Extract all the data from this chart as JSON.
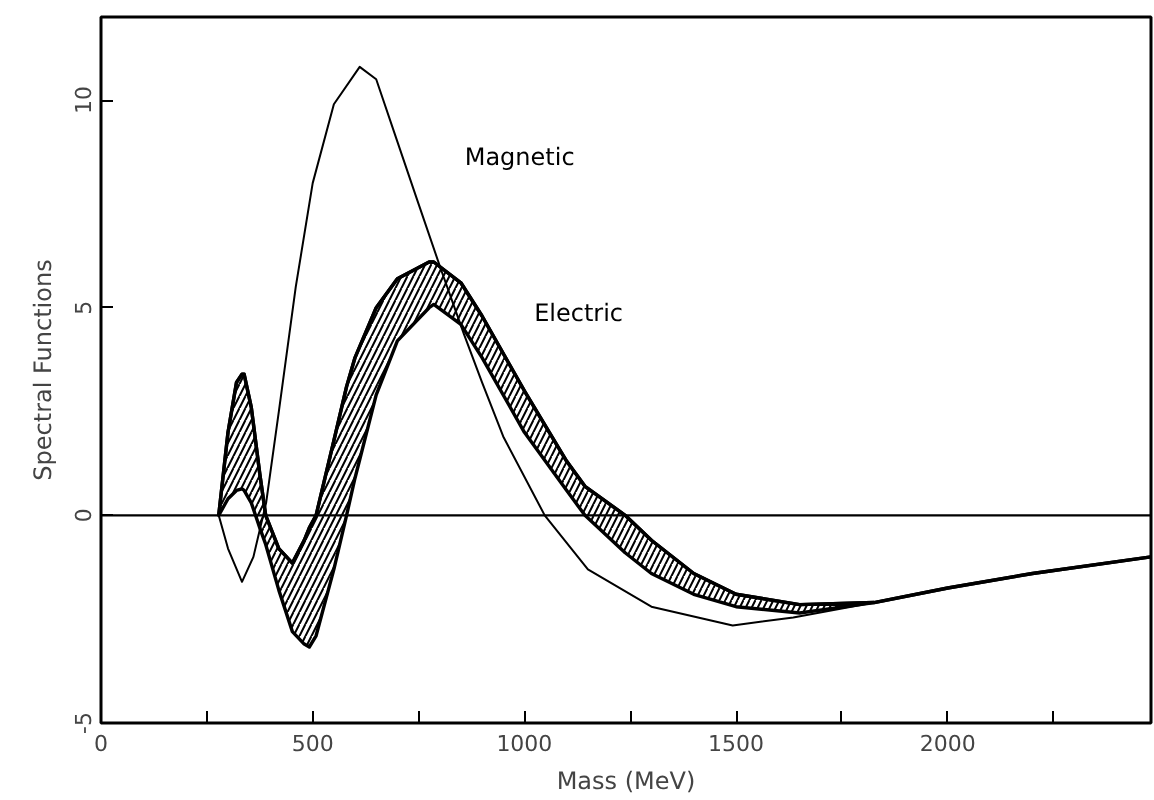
{
  "chart_data": {
    "type": "line",
    "xlabel": "Mass (MeV)",
    "ylabel": "Spectral Functions",
    "xlim": [
      0,
      2480
    ],
    "ylim": [
      -5,
      12
    ],
    "xticks": [
      0,
      {
        "value": 250,
        "label": null
      },
      500,
      {
        "value": 750,
        "label": null
      },
      1000,
      {
        "value": 1250,
        "label": null
      },
      1500,
      {
        "value": 1750,
        "label": null
      },
      2000,
      {
        "value": 2250,
        "label": null
      }
    ],
    "yticks": [
      -5,
      0,
      5,
      10
    ],
    "ref_lines": [
      {
        "axis": "y",
        "value": 0,
        "label": null,
        "color": "#000000"
      }
    ],
    "grid": false,
    "marker": "none",
    "line_style": "solid",
    "series": [
      {
        "name": "Magnetic",
        "color": "#000000",
        "x": [
          278,
          300,
          333,
          360,
          390,
          420,
          460,
          500,
          550,
          611,
          650,
          700,
          750,
          802,
          857,
          900,
          950,
          1048,
          1150,
          1300,
          1492,
          1635,
          1826,
          2000,
          2200,
          2480
        ],
        "values": [
          0,
          -0.8,
          -1.6,
          -1.0,
          0.3,
          2.5,
          5.5,
          8.0,
          9.9,
          10.8,
          10.5,
          9.0,
          7.5,
          5.95,
          4.37,
          3.2,
          1.9,
          0,
          -1.3,
          -2.2,
          -2.65,
          -2.46,
          -2.1,
          -1.75,
          -1.4,
          -1.0
        ]
      },
      {
        "name": "Electric",
        "color": "#000000",
        "x": [
          278,
          300,
          320,
          333,
          338,
          355,
          375,
          389,
          420,
          452,
          480,
          492,
          508,
          550,
          580,
          600,
          650,
          700,
          775,
          786,
          850,
          900,
          1000,
          1100,
          1143,
          1238,
          1300,
          1400,
          1500,
          1650,
          1826,
          2000,
          2200,
          2480
        ],
        "values": [
          0,
          2.0,
          3.2,
          3.4,
          3.4,
          2.6,
          1.0,
          0,
          -0.8,
          -1.15,
          -0.6,
          -0.3,
          0,
          1.8,
          3.1,
          3.8,
          5.0,
          5.7,
          6.1,
          6.1,
          5.6,
          4.8,
          3.0,
          1.3,
          0.7,
          0,
          -0.6,
          -1.4,
          -1.9,
          -2.15,
          -2.1,
          -1.75,
          -1.4,
          -1.0
        ],
        "upper": [
          0,
          2.0,
          3.2,
          3.4,
          3.4,
          2.6,
          1.0,
          0,
          -0.8,
          -1.15,
          -0.6,
          -0.3,
          0,
          1.8,
          3.1,
          3.8,
          5.0,
          5.7,
          6.1,
          6.1,
          5.6,
          4.8,
          3.0,
          1.3,
          0.7,
          0,
          -0.6,
          -1.4,
          -1.9,
          -2.15,
          -2.1,
          -1.75,
          -1.4,
          -1.0
        ],
        "lower": [
          0,
          0.4,
          0.6,
          0.64,
          0.6,
          0.3,
          -0.3,
          -0.7,
          -1.8,
          -2.8,
          -3.1,
          -3.17,
          -2.9,
          -1.3,
          0,
          0.9,
          2.9,
          4.2,
          5.0,
          5.08,
          4.6,
          3.8,
          2.0,
          0.6,
          0,
          -0.9,
          -1.4,
          -1.9,
          -2.2,
          -2.35,
          -2.1,
          -1.75,
          -1.4,
          -1.0
        ]
      }
    ]
  }
}
